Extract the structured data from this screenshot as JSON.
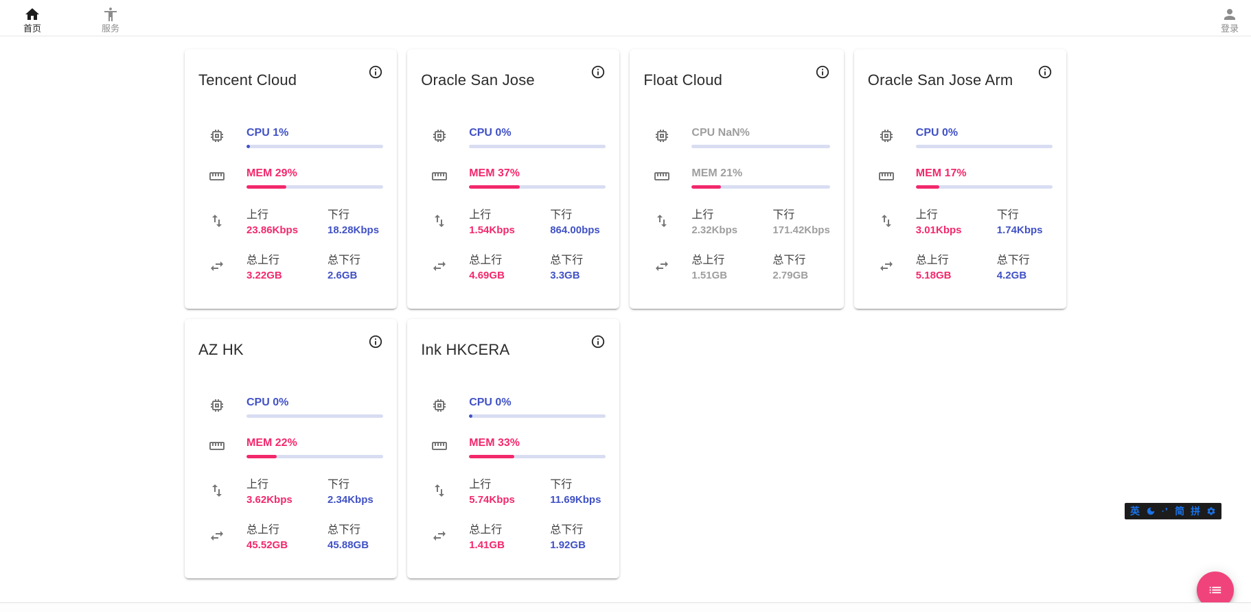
{
  "nav": {
    "home": {
      "label": "首页"
    },
    "services": {
      "label": "服务"
    },
    "login": {
      "label": "登录"
    }
  },
  "labels": {
    "upload": "上行",
    "download": "下行",
    "total_upload": "总上行",
    "total_download": "总下行"
  },
  "colors": {
    "accent_blue": "#4051C5",
    "accent_pink": "#F2286B",
    "bar_track": "#D9DDF2",
    "fab_pink": "#F0437C",
    "ime_blue": "#1A73E8",
    "offline_gray": "#9E9E9E"
  },
  "servers": [
    {
      "name": "Tencent Cloud",
      "cpu_text": "CPU 1%",
      "cpu_bar_pct": 2,
      "mem_text": "MEM 29%",
      "mem_bar_pct": 29,
      "upload": "23.86Kbps",
      "download": "18.28Kbps",
      "total_upload": "3.22GB",
      "total_download": "2.6GB",
      "offline": false
    },
    {
      "name": "Oracle San Jose",
      "cpu_text": "CPU 0%",
      "cpu_bar_pct": 0,
      "mem_text": "MEM 37%",
      "mem_bar_pct": 37,
      "upload": "1.54Kbps",
      "download": "864.00bps",
      "total_upload": "4.69GB",
      "total_download": "3.3GB",
      "offline": false
    },
    {
      "name": "Float Cloud",
      "cpu_text": "CPU NaN%",
      "cpu_bar_pct": 0,
      "mem_text": "MEM 21%",
      "mem_bar_pct": 21,
      "upload": "2.32Kbps",
      "download": "171.42Kbps",
      "total_upload": "1.51GB",
      "total_download": "2.79GB",
      "offline": true
    },
    {
      "name": "Oracle San Jose Arm",
      "cpu_text": "CPU 0%",
      "cpu_bar_pct": 0,
      "mem_text": "MEM 17%",
      "mem_bar_pct": 17,
      "upload": "3.01Kbps",
      "download": "1.74Kbps",
      "total_upload": "5.18GB",
      "total_download": "4.2GB",
      "offline": false
    },
    {
      "name": "AZ HK",
      "cpu_text": "CPU 0%",
      "cpu_bar_pct": 0,
      "mem_text": "MEM 22%",
      "mem_bar_pct": 22,
      "upload": "3.62Kbps",
      "download": "2.34Kbps",
      "total_upload": "45.52GB",
      "total_download": "45.88GB",
      "offline": false
    },
    {
      "name": "Ink HKCERA",
      "cpu_text": "CPU 0%",
      "cpu_bar_pct": 1,
      "mem_text": "MEM 33%",
      "mem_bar_pct": 33,
      "upload": "5.74Kbps",
      "download": "11.69Kbps",
      "total_upload": "1.41GB",
      "total_download": "1.92GB",
      "offline": false
    }
  ],
  "ime": {
    "english": "英",
    "punctuation": "·❜",
    "simplified": "简",
    "pinyin": "拼"
  }
}
